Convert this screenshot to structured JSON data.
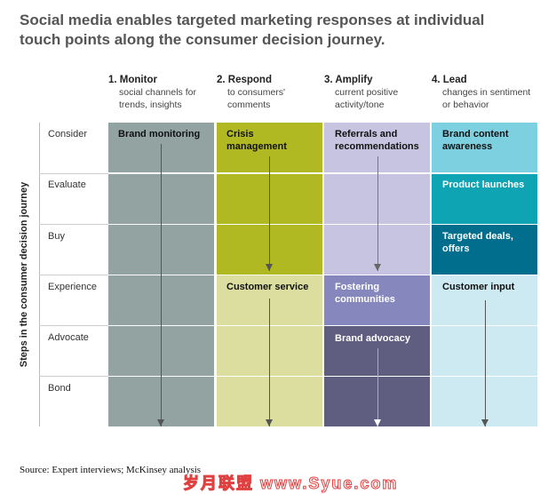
{
  "title": "Social media enables targeted marketing responses at individual touch points along the consumer decision journey.",
  "columns": [
    {
      "title": "1. Monitor",
      "subtitle": "social channels for trends, insights"
    },
    {
      "title": "2. Respond",
      "subtitle": "to consumers' comments"
    },
    {
      "title": "3. Amplify",
      "subtitle": "current positive activity/tone"
    },
    {
      "title": "4. Lead",
      "subtitle": "changes in sentiment or behavior"
    }
  ],
  "axis_label": "Steps in the consumer decision journey",
  "rows": [
    "Consider",
    "Evaluate",
    "Buy",
    "Experience",
    "Advocate",
    "Bond"
  ],
  "cells": {
    "brand_monitoring": "Brand monitoring",
    "crisis_management": "Crisis management",
    "customer_service": "Customer service",
    "referrals": "Referrals and recommendations",
    "fostering": "Fostering communities",
    "brand_advocacy": "Brand advocacy",
    "brand_content": "Brand content awareness",
    "product_launches": "Product launches",
    "targeted_deals": "Targeted deals, offers",
    "customer_input": "Customer input"
  },
  "colors": {
    "monitor": "#92a3a2",
    "respond_dark": "#b1b922",
    "respond_light": "#dcdea0",
    "amplify_light": "#c6c4e0",
    "amplify_mid": "#8687bd",
    "amplify_dark": "#5f5d80",
    "lead_1": "#7dd0e0",
    "lead_2": "#0ea4b4",
    "lead_3": "#006e8c",
    "lead_light": "#cde9f1"
  },
  "source": "Source: Expert interviews; McKinsey analysis",
  "watermark": "岁月联盟 www.Syue.com"
}
